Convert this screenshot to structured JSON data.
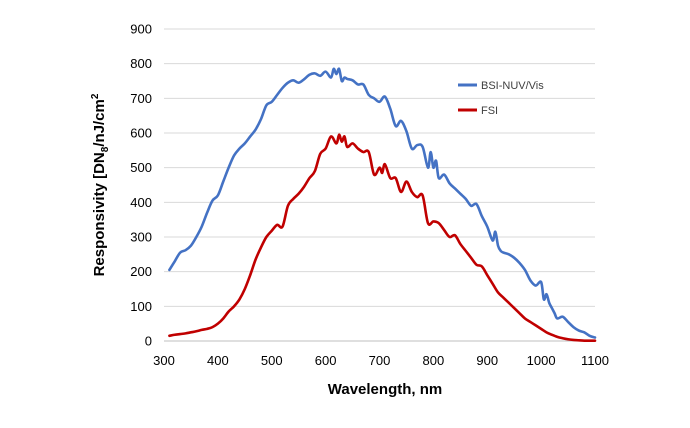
{
  "chart_data": {
    "type": "line",
    "xlabel": "Wavelength, nm",
    "ylabel_parts": {
      "prefix": "Responsivity [DN",
      "subscript": "8",
      "middle": "/nJ/cm",
      "superscript": "2"
    },
    "xlim": [
      300,
      1100
    ],
    "ylim": [
      0,
      900
    ],
    "xticks": [
      300,
      400,
      500,
      600,
      700,
      800,
      900,
      1000,
      1100
    ],
    "yticks": [
      0,
      100,
      200,
      300,
      400,
      500,
      600,
      700,
      800,
      900
    ],
    "grid": "horizontal",
    "legend_position": "top-right",
    "series": [
      {
        "name": "BSI-NUV/Vis",
        "color": "#4472C4",
        "x": [
          310,
          320,
          330,
          340,
          350,
          360,
          370,
          380,
          390,
          400,
          410,
          420,
          430,
          440,
          450,
          460,
          470,
          480,
          490,
          500,
          510,
          520,
          530,
          540,
          550,
          560,
          570,
          580,
          590,
          600,
          610,
          615,
          620,
          625,
          630,
          635,
          640,
          650,
          660,
          670,
          680,
          690,
          700,
          710,
          720,
          730,
          740,
          750,
          760,
          770,
          780,
          790,
          795,
          800,
          805,
          810,
          820,
          830,
          840,
          850,
          860,
          870,
          880,
          890,
          900,
          910,
          915,
          920,
          925,
          930,
          940,
          950,
          960,
          970,
          980,
          990,
          1000,
          1005,
          1010,
          1015,
          1020,
          1025,
          1030,
          1040,
          1050,
          1060,
          1070,
          1080,
          1090,
          1100
        ],
        "values": [
          205,
          230,
          255,
          262,
          275,
          300,
          330,
          370,
          405,
          420,
          460,
          500,
          535,
          555,
          570,
          590,
          610,
          640,
          680,
          690,
          710,
          730,
          745,
          752,
          745,
          755,
          768,
          772,
          765,
          777,
          760,
          785,
          770,
          785,
          750,
          760,
          756,
          752,
          740,
          740,
          710,
          700,
          690,
          705,
          670,
          620,
          635,
          605,
          555,
          565,
          560,
          500,
          545,
          500,
          520,
          470,
          480,
          455,
          440,
          425,
          410,
          390,
          395,
          360,
          330,
          290,
          315,
          275,
          260,
          255,
          250,
          240,
          225,
          205,
          175,
          160,
          170,
          120,
          135,
          110,
          95,
          80,
          65,
          70,
          55,
          40,
          30,
          25,
          15,
          10
        ]
      },
      {
        "name": "FSI",
        "color": "#C00000",
        "x": [
          310,
          320,
          330,
          340,
          350,
          360,
          370,
          380,
          390,
          400,
          410,
          420,
          430,
          440,
          450,
          460,
          470,
          480,
          490,
          500,
          510,
          520,
          530,
          540,
          550,
          560,
          570,
          580,
          590,
          600,
          610,
          620,
          625,
          630,
          635,
          640,
          650,
          660,
          670,
          680,
          690,
          700,
          705,
          710,
          720,
          730,
          740,
          750,
          760,
          770,
          780,
          790,
          800,
          810,
          820,
          830,
          840,
          850,
          860,
          870,
          880,
          890,
          900,
          910,
          920,
          930,
          940,
          950,
          960,
          970,
          980,
          990,
          1000,
          1010,
          1020,
          1030,
          1040,
          1050,
          1060,
          1070,
          1080,
          1090,
          1100
        ],
        "values": [
          15,
          18,
          20,
          22,
          25,
          28,
          32,
          35,
          40,
          50,
          65,
          85,
          100,
          120,
          150,
          190,
          235,
          270,
          300,
          318,
          335,
          330,
          390,
          410,
          425,
          445,
          470,
          490,
          540,
          555,
          590,
          570,
          595,
          575,
          590,
          560,
          570,
          555,
          545,
          545,
          480,
          500,
          485,
          510,
          470,
          470,
          430,
          460,
          430,
          415,
          420,
          340,
          345,
          340,
          320,
          300,
          305,
          280,
          260,
          240,
          220,
          215,
          190,
          165,
          140,
          125,
          110,
          95,
          80,
          65,
          55,
          45,
          35,
          25,
          18,
          12,
          8,
          5,
          3,
          2,
          1,
          1,
          1
        ]
      }
    ]
  }
}
